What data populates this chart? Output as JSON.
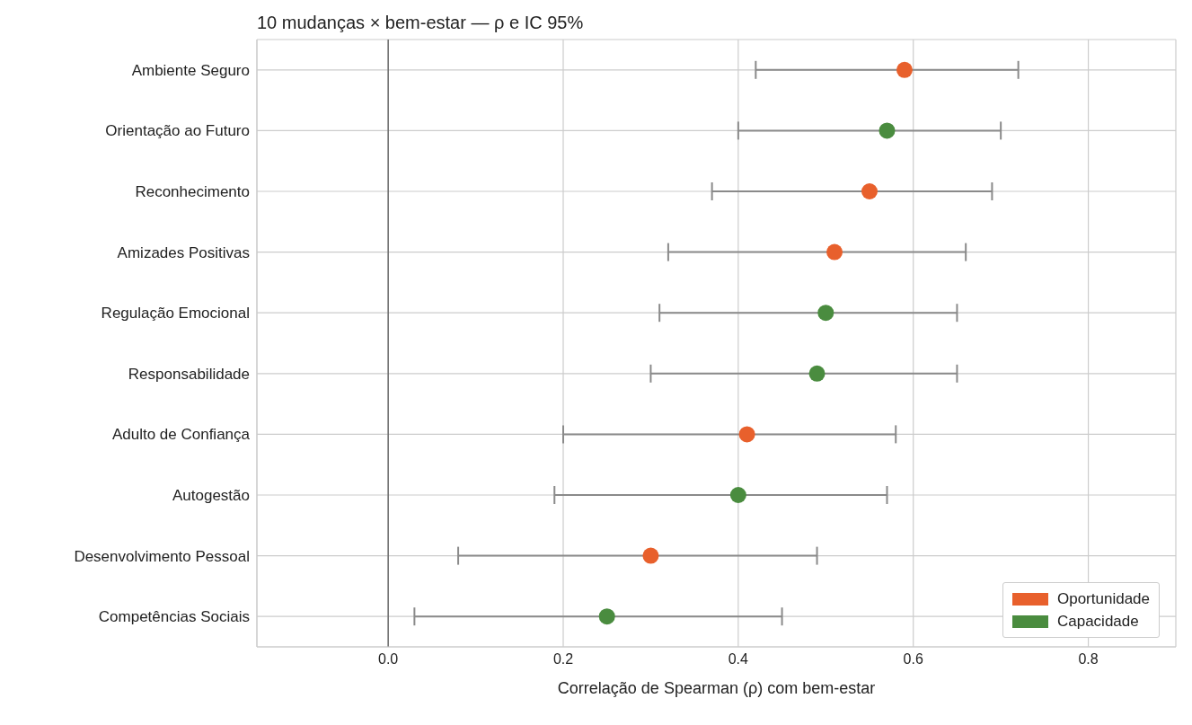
{
  "chart_data": {
    "type": "scatter",
    "orientation": "horizontal",
    "title": "10 mudanças × bem-estar — ρ e IC 95%",
    "xlabel": "Correlação de Spearman (ρ) com bem-estar",
    "categories": [
      "Ambiente Seguro",
      "Orientação ao Futuro",
      "Reconhecimento",
      "Amizades Positivas",
      "Regulação Emocional",
      "Responsabilidade",
      "Adulto de Confiança",
      "Autogestão",
      "Desenvolvimento Pessoal",
      "Competências Sociais"
    ],
    "series": [
      {
        "name": "Oportunidade",
        "color": "#e8602c",
        "values": [
          0.59,
          null,
          0.55,
          0.51,
          null,
          null,
          0.41,
          null,
          0.3,
          null
        ],
        "errors": [
          [
            0.42,
            0.72
          ],
          null,
          [
            0.37,
            0.69
          ],
          [
            0.32,
            0.66
          ],
          null,
          null,
          [
            0.2,
            0.58
          ],
          null,
          [
            0.08,
            0.49
          ],
          null
        ]
      },
      {
        "name": "Capacidade",
        "color": "#4a8c3f",
        "values": [
          null,
          0.57,
          null,
          null,
          0.5,
          0.49,
          null,
          0.4,
          null,
          0.25
        ],
        "errors": [
          null,
          [
            0.4,
            0.7
          ],
          null,
          null,
          [
            0.31,
            0.65
          ],
          [
            0.3,
            0.65
          ],
          null,
          [
            0.19,
            0.57
          ],
          null,
          [
            0.03,
            0.45
          ]
        ]
      }
    ],
    "xlim": [
      -0.15,
      0.9
    ],
    "xticks": [
      {
        "value": 0,
        "label": "0.0"
      },
      {
        "value": 0.2,
        "label": "0.2"
      },
      {
        "value": 0.4,
        "label": "0.4"
      },
      {
        "value": 0.6,
        "label": "0.6"
      },
      {
        "value": 0.8,
        "label": "0.8"
      }
    ],
    "ref_lines": [
      {
        "axis": "x",
        "value": 0,
        "color": "#555555"
      }
    ],
    "grid": true,
    "legend": "bottom right",
    "marker": "circle"
  }
}
